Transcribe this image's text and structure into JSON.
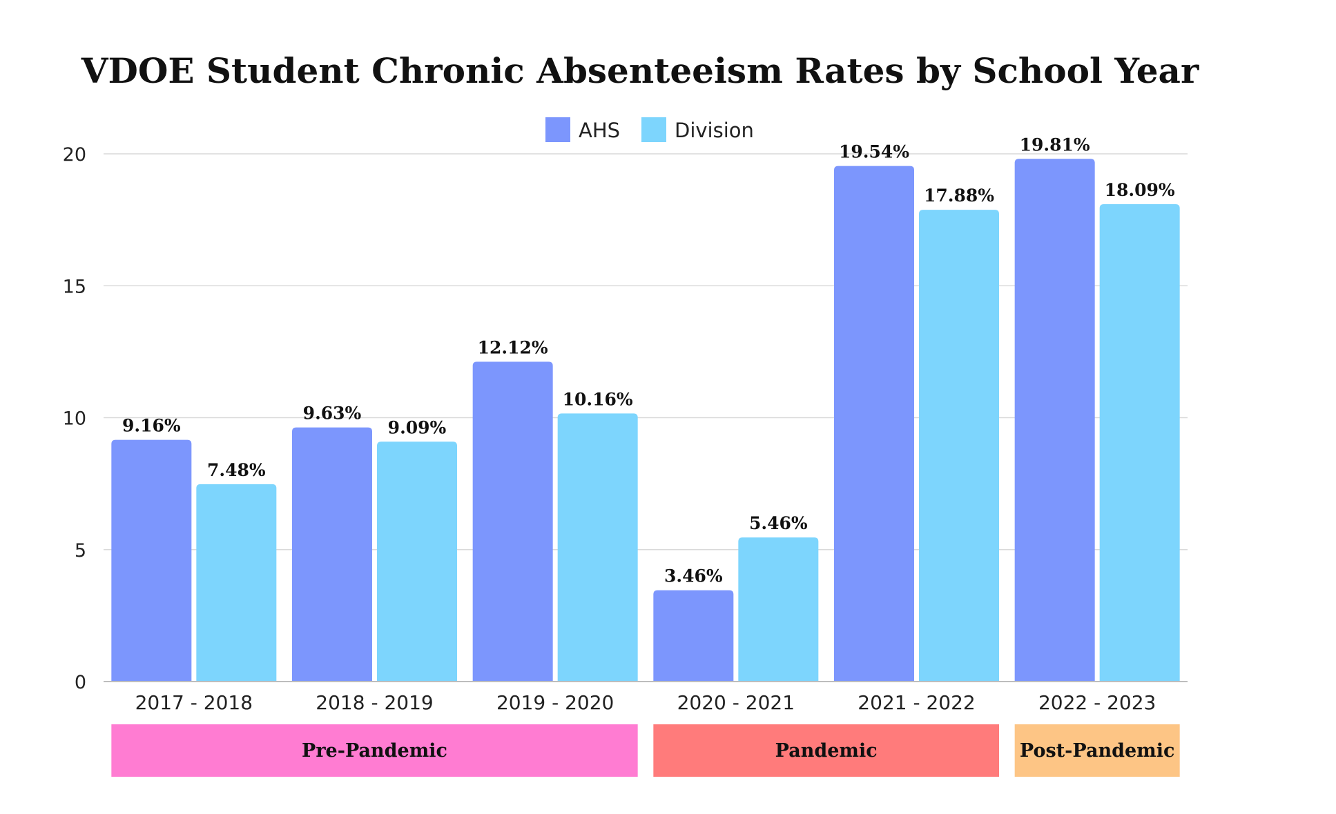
{
  "chart_data": {
    "type": "bar",
    "title": "VDOE Student Chronic Absenteeism Rates by School Year",
    "xlabel": "",
    "ylabel": "",
    "ylim": [
      0,
      20
    ],
    "yticks": [
      "0",
      "5",
      "10",
      "15",
      "20"
    ],
    "grid": true,
    "legend_position": "top-center",
    "categories": [
      "2017 - 2018",
      "2018 - 2019",
      "2019 - 2020",
      "2020 - 2021",
      "2021 - 2022",
      "2022 - 2023"
    ],
    "series": [
      {
        "name": "AHS",
        "color": "#7c96fd",
        "values": [
          9.16,
          9.63,
          12.12,
          3.46,
          19.54,
          19.81
        ],
        "labels": [
          "9.16%",
          "9.63%",
          "12.12%",
          "3.46%",
          "19.54%",
          "19.81%"
        ]
      },
      {
        "name": "Division",
        "color": "#7dd5fd",
        "values": [
          7.48,
          9.09,
          10.16,
          5.46,
          17.88,
          18.09
        ],
        "labels": [
          "7.48%",
          "9.09%",
          "10.16%",
          "5.46%",
          "17.88%",
          "18.09%"
        ]
      }
    ],
    "periods": [
      {
        "label": "Pre-Pandemic",
        "start_index": 0,
        "end_index": 2,
        "color": "#ff7cd2"
      },
      {
        "label": "Pandemic",
        "start_index": 3,
        "end_index": 4,
        "color": "#ff7b7b"
      },
      {
        "label": "Post-Pandemic",
        "start_index": 5,
        "end_index": 5,
        "color": "#fdc585"
      }
    ]
  }
}
